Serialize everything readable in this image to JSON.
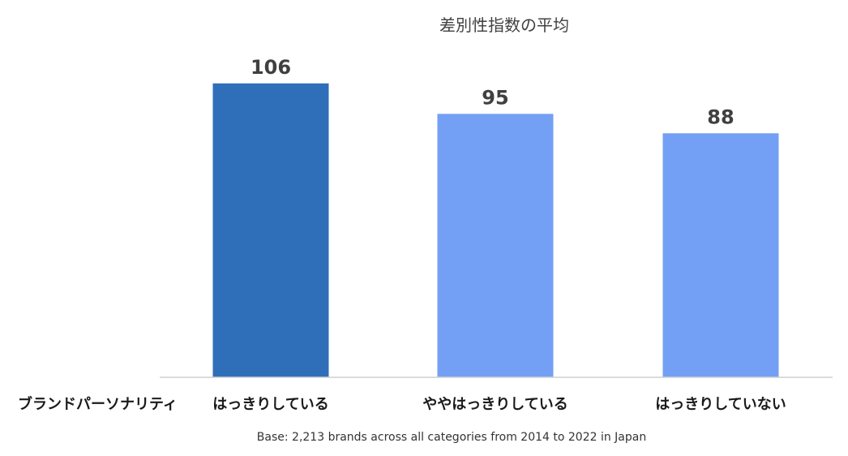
{
  "chart_data": {
    "type": "bar",
    "title": "差別性指数の平均",
    "xlabel": "ブランドパーソナリティ",
    "categories": [
      "はっきりしている",
      "ややはっきりしている",
      "はっきりしていない"
    ],
    "values": [
      106,
      95,
      88
    ],
    "data_labels": [
      "106",
      "95",
      "88"
    ],
    "colors": [
      "#2f6fba",
      "#739ff5",
      "#739ff5"
    ],
    "ylim": [
      0,
      115
    ],
    "grid": false,
    "legend": "none"
  },
  "footnote": "Base: 2,213 brands across all categories from 2014 to 2022 in Japan"
}
